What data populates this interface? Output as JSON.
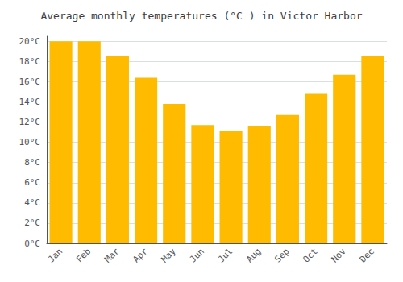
{
  "chart_data": {
    "type": "bar",
    "title": "Average monthly temperatures (°C ) in Victor Harbor",
    "categories": [
      "Jan",
      "Feb",
      "Mar",
      "Apr",
      "May",
      "Jun",
      "Jul",
      "Aug",
      "Sep",
      "Oct",
      "Nov",
      "Dec"
    ],
    "values": [
      20.0,
      20.0,
      18.5,
      16.4,
      13.8,
      11.7,
      11.1,
      11.6,
      12.7,
      14.8,
      16.7,
      18.5
    ],
    "color": "#FFBB00",
    "ylim": [
      0,
      20.5
    ],
    "yticks": [
      {
        "value": 0,
        "label": "0°C"
      },
      {
        "value": 2,
        "label": "2°C"
      },
      {
        "value": 4,
        "label": "4°C"
      },
      {
        "value": 6,
        "label": "6°C"
      },
      {
        "value": 8,
        "label": "8°C"
      },
      {
        "value": 10,
        "label": "10°C"
      },
      {
        "value": 12,
        "label": "12°C"
      },
      {
        "value": 14,
        "label": "14°C"
      },
      {
        "value": 16,
        "label": "16°C"
      },
      {
        "value": 18,
        "label": "18°C"
      },
      {
        "value": 20,
        "label": "20°C"
      }
    ],
    "grid": true
  }
}
